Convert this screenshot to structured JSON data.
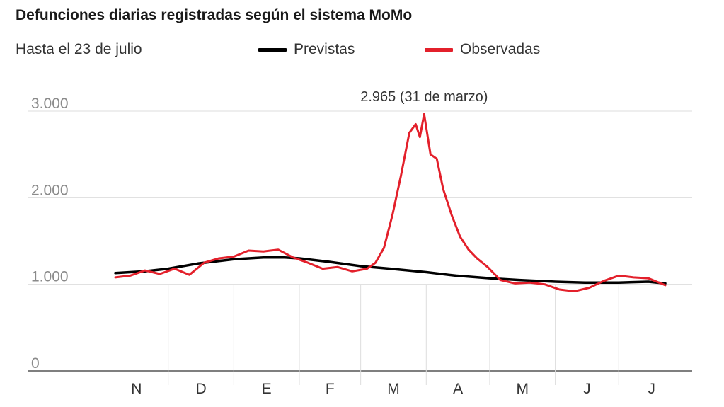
{
  "title": "Defunciones diarias registradas según el sistema MoMo",
  "subtitle": "Hasta el 23 de julio",
  "legend": [
    {
      "label": "Previstas",
      "color": "#000000"
    },
    {
      "label": "Observadas",
      "color": "#e3202b"
    }
  ],
  "chart_data": {
    "type": "line",
    "title": "Defunciones diarias registradas según el sistema MoMo",
    "subtitle": "Hasta el 23 de julio",
    "grid": true,
    "ylim": [
      0,
      3000
    ],
    "y_ticks": [
      {
        "value": 0,
        "label": "0"
      },
      {
        "value": 1000,
        "label": "1.000"
      },
      {
        "value": 2000,
        "label": "2.000"
      },
      {
        "value": 3000,
        "label": "3.000"
      }
    ],
    "x_range": [
      "2019-11-06",
      "2020-07-23"
    ],
    "x_ticks": [
      "N",
      "D",
      "E",
      "F",
      "M",
      "A",
      "M",
      "J",
      "J"
    ],
    "annotation": {
      "label": "2.965 (31 de marzo)",
      "x": "2020-03-31",
      "y": 2965
    },
    "series": [
      {
        "name": "Previstas",
        "color": "#000000",
        "x": [
          "2019-11-06",
          "2019-11-20",
          "2019-12-01",
          "2019-12-15",
          "2020-01-01",
          "2020-01-15",
          "2020-01-25",
          "2020-02-01",
          "2020-02-15",
          "2020-03-01",
          "2020-03-15",
          "2020-04-01",
          "2020-04-15",
          "2020-05-01",
          "2020-05-15",
          "2020-06-01",
          "2020-06-15",
          "2020-07-01",
          "2020-07-15",
          "2020-07-23"
        ],
        "values": [
          1130,
          1150,
          1180,
          1240,
          1290,
          1310,
          1310,
          1300,
          1260,
          1210,
          1180,
          1140,
          1100,
          1070,
          1050,
          1030,
          1020,
          1020,
          1030,
          1010
        ]
      },
      {
        "name": "Observadas",
        "color": "#e3202b",
        "x": [
          "2019-11-06",
          "2019-11-13",
          "2019-11-20",
          "2019-11-27",
          "2019-12-04",
          "2019-12-11",
          "2019-12-18",
          "2019-12-25",
          "2020-01-01",
          "2020-01-08",
          "2020-01-15",
          "2020-01-22",
          "2020-01-29",
          "2020-02-05",
          "2020-02-12",
          "2020-02-19",
          "2020-02-26",
          "2020-03-04",
          "2020-03-08",
          "2020-03-12",
          "2020-03-16",
          "2020-03-20",
          "2020-03-24",
          "2020-03-27",
          "2020-03-29",
          "2020-03-31",
          "2020-04-03",
          "2020-04-06",
          "2020-04-09",
          "2020-04-13",
          "2020-04-17",
          "2020-04-21",
          "2020-04-25",
          "2020-04-30",
          "2020-05-06",
          "2020-05-13",
          "2020-05-20",
          "2020-05-27",
          "2020-06-03",
          "2020-06-10",
          "2020-06-17",
          "2020-06-24",
          "2020-07-01",
          "2020-07-08",
          "2020-07-15",
          "2020-07-23"
        ],
        "values": [
          1080,
          1100,
          1160,
          1120,
          1180,
          1110,
          1250,
          1300,
          1320,
          1390,
          1380,
          1400,
          1310,
          1250,
          1180,
          1200,
          1150,
          1180,
          1250,
          1420,
          1800,
          2250,
          2750,
          2850,
          2700,
          2965,
          2500,
          2450,
          2100,
          1800,
          1550,
          1400,
          1300,
          1200,
          1050,
          1010,
          1020,
          1000,
          940,
          920,
          960,
          1040,
          1100,
          1080,
          1070,
          990
        ]
      }
    ]
  }
}
